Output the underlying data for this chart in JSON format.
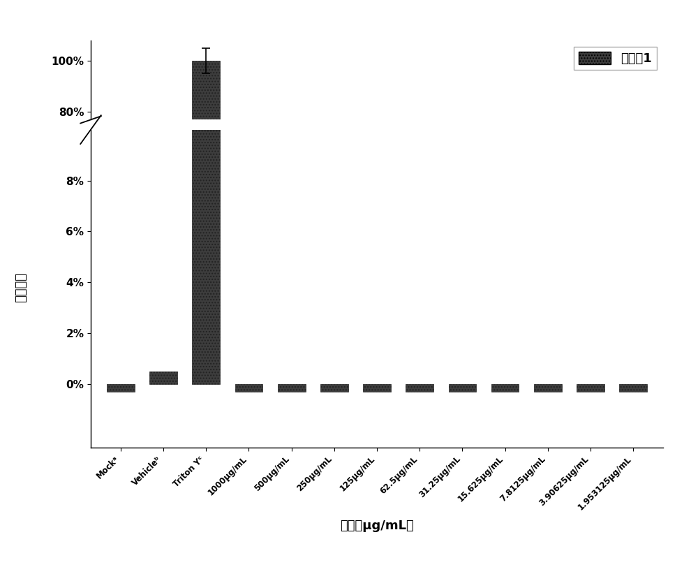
{
  "categories": [
    "Mockᵃ",
    "Vehicleᵇ",
    "Triton Yᶜ",
    "1000μg/mL",
    "500μg/mL",
    "250μg/mL",
    "125μg/mL",
    "62.5μg/mL",
    "31.25μg/mL",
    "15.625μg/mL",
    "7.8125μg/mL",
    "3.90625μg/mL",
    "1.953125μg/mL"
  ],
  "values": [
    -0.3,
    0.5,
    100.0,
    -0.3,
    -0.3,
    -0.3,
    -0.3,
    -0.3,
    -0.3,
    -0.3,
    -0.3,
    -0.3,
    -0.3
  ],
  "error_bars": [
    0.0,
    0.0,
    5.0,
    0.0,
    0.0,
    0.0,
    0.0,
    0.0,
    0.0,
    0.0,
    0.0,
    0.0,
    0.0
  ],
  "bar_color": "#3d3d3d",
  "bar_hatch": "....",
  "xlabel": "浓度（μg/mL）",
  "ylabel": "溶血率％",
  "legend_label": "化合眅1",
  "ytick_labels_lower": [
    "0%",
    "2%",
    "4%",
    "6%",
    "8%"
  ],
  "ytick_vals_lower": [
    0,
    2,
    4,
    6,
    8
  ],
  "ytick_labels_upper": [
    "80%",
    "100%"
  ],
  "ytick_vals_upper": [
    80,
    100
  ],
  "background_color": "#ffffff",
  "fig_width": 10.0,
  "fig_height": 8.22,
  "dpi": 100
}
